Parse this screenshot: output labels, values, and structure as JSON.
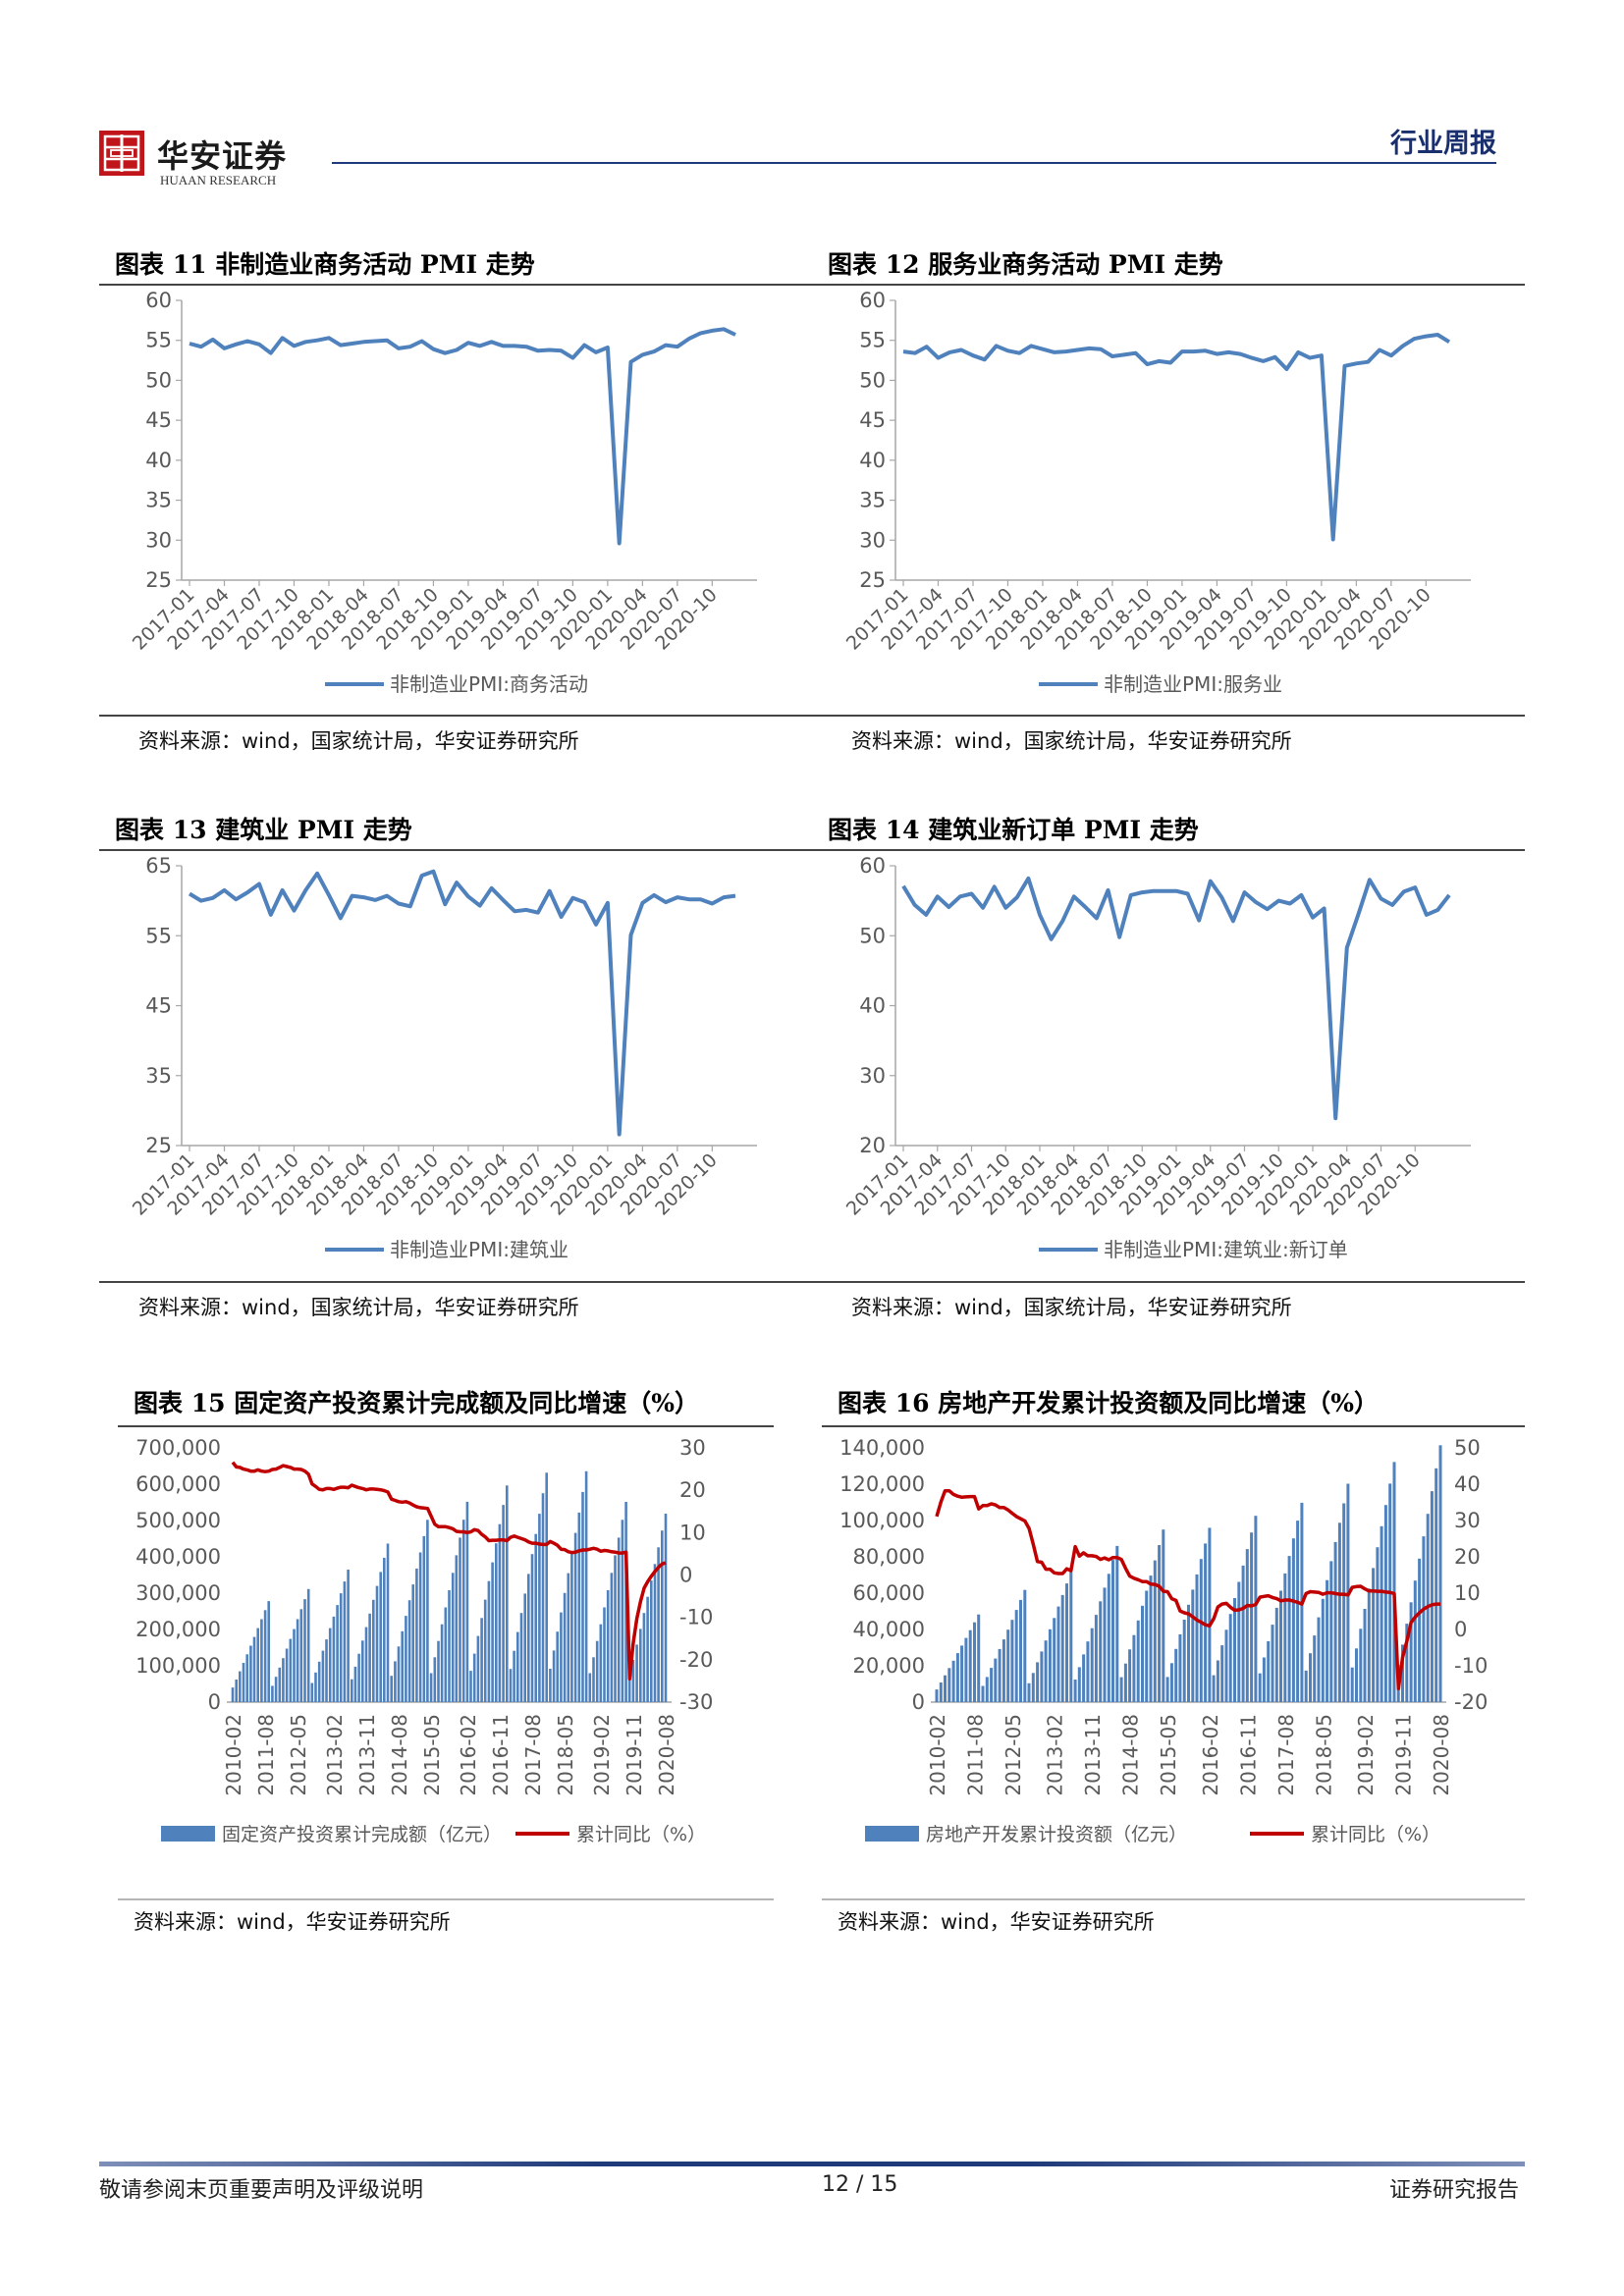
{
  "header": {
    "brand_cn": "华安证券",
    "brand_en": "HUAAN RESEARCH",
    "report_type": "行业周报"
  },
  "colors": {
    "line_blue": "#4f81bd",
    "bar_blue": "#4f81bd",
    "line_red": "#c00000",
    "brand_red": "#c0161b",
    "navy": "#1f3a7a"
  },
  "charts": {
    "c11": {
      "title": "图表 11  非制造业商务活动 PMI 走势",
      "source": "资料来源：wind，国家统计局，华安证券研究所"
    },
    "c12": {
      "title": "图表 12  服务业商务活动 PMI 走势",
      "source": "资料来源：wind，国家统计局，华安证券研究所"
    },
    "c13": {
      "title": "图表 13  建筑业 PMI 走势",
      "source": "资料来源：wind，国家统计局，华安证券研究所"
    },
    "c14": {
      "title": "图表 14  建筑业新订单 PMI 走势",
      "source": "资料来源：wind，国家统计局，华安证券研究所"
    },
    "c15": {
      "title": "图表 15  固定资产投资累计完成额及同比增速（%）",
      "source": "资料来源：wind，华安证券研究所"
    },
    "c16": {
      "title": "图表 16  房地产开发累计投资额及同比增速（%）",
      "source": "资料来源：wind，华安证券研究所"
    }
  },
  "chart_data": [
    {
      "id": "c11",
      "type": "line",
      "x_ticks": [
        "2017-01",
        "2017-04",
        "2017-07",
        "2017-10",
        "2018-01",
        "2018-04",
        "2018-07",
        "2018-10",
        "2019-01",
        "2019-04",
        "2019-07",
        "2019-10",
        "2020-01",
        "2020-04",
        "2020-07",
        "2020-10"
      ],
      "ylim": [
        25,
        60
      ],
      "y_ticks": [
        25,
        30,
        35,
        40,
        45,
        50,
        55,
        60
      ],
      "series": [
        {
          "name": "非制造业PMI:商务活动",
          "values": [
            54.6,
            54.2,
            55.1,
            54.0,
            54.5,
            54.9,
            54.5,
            53.4,
            55.3,
            54.3,
            54.8,
            55.0,
            55.3,
            54.4,
            54.6,
            54.8,
            54.9,
            55.0,
            54.0,
            54.2,
            54.9,
            53.9,
            53.4,
            53.8,
            54.7,
            54.3,
            54.8,
            54.3,
            54.3,
            54.2,
            53.7,
            53.8,
            53.7,
            52.8,
            54.4,
            53.5,
            54.1,
            29.6,
            52.3,
            53.2,
            53.6,
            54.4,
            54.2,
            55.2,
            55.9,
            56.2,
            56.4,
            55.7
          ]
        }
      ]
    },
    {
      "id": "c12",
      "type": "line",
      "x_ticks": [
        "2017-01",
        "2017-04",
        "2017-07",
        "2017-10",
        "2018-01",
        "2018-04",
        "2018-07",
        "2018-10",
        "2019-01",
        "2019-04",
        "2019-07",
        "2019-10",
        "2020-01",
        "2020-04",
        "2020-07",
        "2020-10"
      ],
      "ylim": [
        25,
        60
      ],
      "y_ticks": [
        25,
        30,
        35,
        40,
        45,
        50,
        55,
        60
      ],
      "series": [
        {
          "name": "非制造业PMI:服务业",
          "values": [
            53.6,
            53.4,
            54.2,
            52.8,
            53.5,
            53.8,
            53.1,
            52.6,
            54.3,
            53.7,
            53.4,
            54.3,
            53.9,
            53.5,
            53.6,
            53.8,
            54.0,
            53.9,
            53.0,
            53.2,
            53.4,
            52.0,
            52.4,
            52.2,
            53.6,
            53.6,
            53.7,
            53.3,
            53.5,
            53.3,
            52.8,
            52.4,
            52.9,
            51.4,
            53.5,
            52.8,
            53.1,
            30.1,
            51.8,
            52.1,
            52.3,
            53.8,
            53.1,
            54.3,
            55.2,
            55.5,
            55.7,
            54.8
          ]
        }
      ]
    },
    {
      "id": "c13",
      "type": "line",
      "x_ticks": [
        "2017-01",
        "2017-04",
        "2017-07",
        "2017-10",
        "2018-01",
        "2018-04",
        "2018-07",
        "2018-10",
        "2019-01",
        "2019-04",
        "2019-07",
        "2019-10",
        "2020-01",
        "2020-04",
        "2020-07",
        "2020-10"
      ],
      "ylim": [
        25,
        65
      ],
      "y_ticks": [
        25,
        35,
        45,
        55,
        65
      ],
      "series": [
        {
          "name": "非制造业PMI:建筑业",
          "values": [
            61.0,
            60.0,
            60.4,
            61.5,
            60.2,
            61.2,
            62.4,
            58.0,
            61.5,
            58.6,
            61.5,
            63.9,
            60.8,
            57.5,
            60.7,
            60.5,
            60.1,
            60.7,
            59.6,
            59.2,
            63.6,
            64.2,
            59.5,
            62.6,
            60.6,
            59.3,
            61.8,
            60.1,
            58.5,
            58.7,
            58.3,
            61.4,
            57.7,
            60.4,
            59.8,
            56.6,
            59.7,
            26.6,
            55.1,
            59.7,
            60.8,
            59.8,
            60.5,
            60.2,
            60.2,
            59.6,
            60.5,
            60.7
          ]
        }
      ]
    },
    {
      "id": "c14",
      "type": "line",
      "x_ticks": [
        "2017-01",
        "2017-04",
        "2017-07",
        "2017-10",
        "2018-01",
        "2018-04",
        "2018-07",
        "2018-10",
        "2019-01",
        "2019-04",
        "2019-07",
        "2019-10",
        "2020-01",
        "2020-04",
        "2020-07",
        "2020-10"
      ],
      "ylim": [
        20,
        60
      ],
      "y_ticks": [
        20,
        30,
        40,
        50,
        60
      ],
      "series": [
        {
          "name": "非制造业PMI:建筑业:新订单",
          "values": [
            57.1,
            54.4,
            53.0,
            55.6,
            54.1,
            55.6,
            56.0,
            54.0,
            57.0,
            54.0,
            55.5,
            58.2,
            53.0,
            49.5,
            52.1,
            55.6,
            54.1,
            52.5,
            56.5,
            49.8,
            55.8,
            56.2,
            56.4,
            56.4,
            56.4,
            56.0,
            52.2,
            57.8,
            55.5,
            52.1,
            56.2,
            54.8,
            53.8,
            55.0,
            54.6,
            55.8,
            52.6,
            53.9,
            23.9,
            48.3,
            53.0,
            58.0,
            55.3,
            54.4,
            56.3,
            56.9,
            53.0,
            53.7,
            55.8
          ]
        }
      ]
    },
    {
      "id": "c15",
      "type": "bar+line",
      "x_ticks": [
        "2010-02",
        "2011-08",
        "2012-05",
        "2013-02",
        "2013-11",
        "2014-08",
        "2015-05",
        "2016-02",
        "2016-11",
        "2017-08",
        "2018-05",
        "2019-02",
        "2019-11",
        "2020-08"
      ],
      "y_left": {
        "ylim": [
          0,
          700000
        ],
        "ticks": [
          "700,000",
          "600,000",
          "500,000",
          "400,000",
          "300,000",
          "200,000",
          "100,000",
          "0"
        ]
      },
      "y_right": {
        "ylim": [
          -30,
          30
        ],
        "ticks": [
          30,
          20,
          10,
          0,
          -10,
          -20,
          -30
        ]
      },
      "legend": [
        "固定资产投资累计完成额（亿元）",
        "累计同比（%）"
      ],
      "annual_totals": [
        278140,
        311485,
        364835,
        436528,
        502005,
        551590,
        596501,
        631684,
        635636,
        551478,
        518907
      ],
      "ytd_growth_by_year": [
        [
          26.6,
          25.5,
          25.4,
          25.0,
          24.8,
          24.5,
          24.5,
          24.8,
          24.5,
          24.4,
          24.5
        ],
        [
          24.9,
          25.0,
          25.4,
          25.8,
          25.6,
          25.4,
          25.0,
          25.0,
          24.9,
          24.5,
          23.8
        ],
        [
          21.5,
          20.9,
          20.2,
          20.1,
          20.4,
          20.4,
          20.2,
          20.5,
          20.7,
          20.7,
          20.6
        ],
        [
          21.2,
          20.9,
          20.6,
          20.4,
          20.1,
          20.3,
          20.3,
          20.2,
          20.1,
          19.9,
          19.6
        ],
        [
          17.9,
          17.6,
          17.3,
          17.2,
          17.3,
          17.0,
          16.5,
          16.1,
          15.9,
          15.8,
          15.7
        ],
        [
          13.9,
          12.0,
          11.4,
          11.4,
          11.4,
          11.2,
          10.9,
          10.3,
          10.2,
          10.2,
          10.0
        ],
        [
          10.2,
          10.7,
          10.5,
          9.6,
          9.0,
          8.1,
          8.2,
          8.2,
          8.3,
          8.3,
          8.1
        ],
        [
          8.9,
          9.2,
          8.9,
          8.6,
          8.3,
          7.8,
          7.5,
          7.5,
          7.3,
          7.2,
          7.2
        ],
        [
          7.9,
          7.5,
          7.0,
          6.1,
          6.0,
          5.5,
          5.3,
          5.4,
          5.7,
          5.9,
          5.9
        ],
        [
          6.1,
          6.3,
          6.1,
          5.6,
          5.8,
          5.7,
          5.5,
          5.4,
          5.2,
          5.2,
          5.4
        ],
        [
          -24.5,
          -16.1,
          -10.3,
          -6.3,
          -3.1,
          -1.6,
          -0.3,
          0.8,
          1.8,
          2.6,
          2.9
        ]
      ]
    },
    {
      "id": "c16",
      "type": "bar+line",
      "x_ticks": [
        "2010-02",
        "2011-08",
        "2012-05",
        "2013-02",
        "2013-11",
        "2014-08",
        "2015-05",
        "2016-02",
        "2016-11",
        "2017-08",
        "2018-05",
        "2019-02",
        "2019-11",
        "2020-08"
      ],
      "y_left": {
        "ylim": [
          0,
          140000
        ],
        "ticks": [
          "140,000",
          "120,000",
          "100,000",
          "80,000",
          "60,000",
          "40,000",
          "20,000",
          "0"
        ]
      },
      "y_right": {
        "ylim": [
          -20,
          50
        ],
        "ticks": [
          50,
          40,
          30,
          20,
          10,
          0,
          -10,
          -20
        ]
      },
      "legend": [
        "房地产开发累计投资额（亿元）",
        "累计同比（%）"
      ],
      "annual_totals": [
        48259,
        61796,
        71804,
        86013,
        95036,
        95979,
        102581,
        109799,
        120264,
        132194,
        141443
      ],
      "ytd_growth_by_year": [
        [
          31.1,
          35.1,
          38.2,
          38.2,
          37.2,
          36.7,
          36.4,
          36.5,
          36.6,
          36.6,
          33.2
        ],
        [
          34.1,
          34.1,
          34.6,
          34.3,
          33.6,
          33.6,
          32.9,
          32.0,
          31.1,
          30.5,
          29.9
        ],
        [
          27.8,
          23.5,
          18.7,
          18.5,
          16.6,
          16.6,
          15.6,
          15.4,
          15.4,
          16.7,
          16.2
        ],
        [
          22.8,
          20.2,
          21.1,
          20.3,
          20.3,
          20.1,
          19.3,
          19.7,
          19.2,
          19.8,
          19.8
        ],
        [
          19.3,
          16.8,
          14.7,
          14.1,
          13.7,
          13.2,
          13.2,
          12.5,
          12.4,
          11.9,
          10.5
        ],
        [
          10.4,
          8.5,
          8.0,
          5.1,
          4.6,
          4.3,
          3.5,
          2.6,
          2.0,
          1.3,
          1.0
        ],
        [
          3.0,
          6.2,
          7.0,
          7.2,
          6.1,
          5.3,
          5.4,
          5.8,
          6.6,
          6.5,
          6.9
        ],
        [
          8.9,
          9.1,
          9.3,
          8.8,
          8.5,
          7.9,
          8.1,
          8.1,
          7.8,
          7.5,
          7.0
        ],
        [
          9.9,
          10.4,
          10.3,
          10.2,
          9.7,
          10.1,
          10.1,
          9.9,
          9.7,
          9.7,
          9.5
        ],
        [
          11.6,
          11.8,
          11.9,
          11.2,
          10.6,
          10.6,
          10.5,
          10.5,
          10.3,
          10.2,
          9.9
        ],
        [
          -16.3,
          -7.7,
          -3.3,
          1.9,
          3.4,
          4.6,
          5.6,
          6.3,
          6.8,
          7.0,
          7.0
        ]
      ]
    }
  ],
  "footer": {
    "disclaimer": "敬请参阅末页重要声明及评级说明",
    "page": "12 / 15",
    "doc_type": "证券研究报告"
  }
}
